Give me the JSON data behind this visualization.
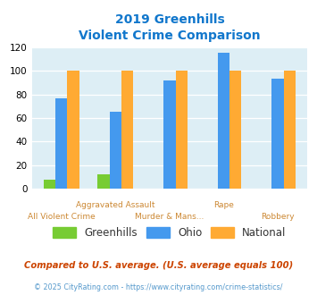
{
  "title_line1": "2019 Greenhills",
  "title_line2": "Violent Crime Comparison",
  "top_labels": [
    "",
    "Aggravated Assault",
    "",
    "Rape",
    ""
  ],
  "bot_labels": [
    "All Violent Crime",
    "",
    "Murder & Mans...",
    "",
    "Robbery"
  ],
  "greenhills": [
    8,
    12,
    0,
    0,
    0
  ],
  "ohio": [
    77,
    65,
    92,
    115,
    93
  ],
  "national": [
    100,
    100,
    100,
    100,
    100
  ],
  "greenhills_color": "#77cc33",
  "ohio_color": "#4499ee",
  "national_color": "#ffaa33",
  "bg_color": "#ddeef5",
  "ylim": [
    0,
    120
  ],
  "yticks": [
    0,
    20,
    40,
    60,
    80,
    100,
    120
  ],
  "footnote1": "Compared to U.S. average. (U.S. average equals 100)",
  "footnote2": "© 2025 CityRating.com - https://www.cityrating.com/crime-statistics/",
  "title_color": "#1177cc",
  "label_color": "#cc8833",
  "footnote1_color": "#cc4400",
  "footnote2_color": "#5599cc"
}
